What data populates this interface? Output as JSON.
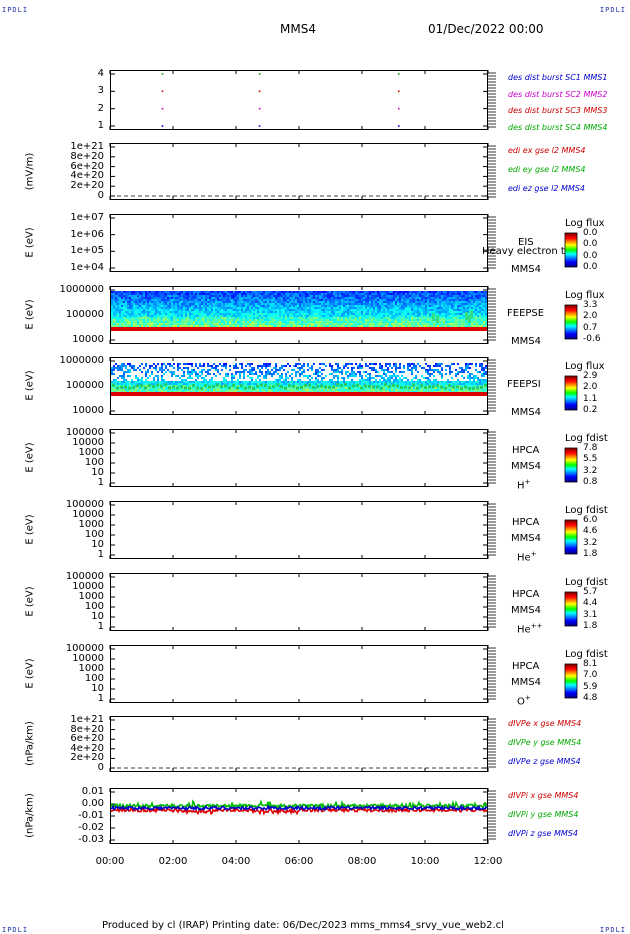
{
  "corner_labels": {
    "tl": "IPDLI",
    "tr": "IPDLI",
    "bl": "IPDLI",
    "br": "IPDLI"
  },
  "header": {
    "mission": "MMS4",
    "date": "01/Dec/2022 00:00"
  },
  "footer": {
    "text": "Produced by cl (IRAP)   Printing date: 06/Dec/2023   mms_mms4_srvy_vue_web2.cl"
  },
  "x_ticks": [
    "00:00",
    "02:00",
    "04:00",
    "06:00",
    "08:00",
    "10:00",
    "12:00"
  ],
  "panels": [
    {
      "id": "burst",
      "ylabel": "",
      "ticks": [
        "4",
        "3",
        "2",
        "1"
      ],
      "legend": [
        {
          "text": "des dist burst SC1 MMS1",
          "color": "#0000cc"
        },
        {
          "text": "des dist burst SC2 MMS2",
          "color": "#cc00cc"
        },
        {
          "text": "des dist burst SC3 MMS3",
          "color": "#cc0000"
        },
        {
          "text": "des dist burst SC4 MMS4",
          "color": "#00aa00"
        }
      ]
    },
    {
      "id": "edi",
      "ylabel": "(mV/m)",
      "ticks": [
        "1e+21",
        "8e+20",
        "6e+20",
        "4e+20",
        "2e+20",
        "0"
      ],
      "legend": [
        {
          "text": "edi ex gse l2 MMS4",
          "color": "#cc0000"
        },
        {
          "text": "edi ey gse l2 MMS4",
          "color": "#00aa00"
        },
        {
          "text": "edi ez gse l2 MMS4",
          "color": "#0000cc"
        }
      ]
    },
    {
      "id": "eis",
      "ylabel": "E (eV)",
      "ticks": [
        "1e+07",
        "1e+06",
        "1e+05",
        "1e+04"
      ],
      "inst": [
        "EIS",
        "MMS4"
      ],
      "overlay": "Heavy electron to",
      "cb_title": "Log flux",
      "cb_vals": [
        "0.0",
        "0.0",
        "0.0",
        "0.0"
      ]
    },
    {
      "id": "feepse",
      "ylabel": "E (eV)",
      "ticks": [
        "1000000",
        "100000",
        "10000"
      ],
      "inst": [
        "FEEPSE",
        "MMS4"
      ],
      "cb_title": "Log flux",
      "cb_vals": [
        "3.3",
        "2.0",
        "0.7",
        "-0.6"
      ]
    },
    {
      "id": "feepsi",
      "ylabel": "E (eV)",
      "ticks": [
        "1000000",
        "100000",
        "10000"
      ],
      "inst": [
        "FEEPSI",
        "MMS4"
      ],
      "cb_title": "Log flux",
      "cb_vals": [
        "2.9",
        "2.0",
        "1.1",
        "0.2"
      ]
    },
    {
      "id": "hpca_h",
      "ylabel": "E (eV)",
      "ticks": [
        "100000",
        "10000",
        "1000",
        "100",
        "10",
        "1"
      ],
      "inst": [
        "HPCA",
        "MMS4"
      ],
      "species": "H",
      "sup": "+",
      "cb_title": "Log fdist",
      "cb_vals": [
        "7.8",
        "5.5",
        "3.2",
        "0.8"
      ]
    },
    {
      "id": "hpca_he",
      "ylabel": "E (eV)",
      "ticks": [
        "100000",
        "10000",
        "1000",
        "100",
        "10",
        "1"
      ],
      "inst": [
        "HPCA",
        "MMS4"
      ],
      "species": "He",
      "sup": "+",
      "cb_title": "Log fdist",
      "cb_vals": [
        "6.0",
        "4.6",
        "3.2",
        "1.8"
      ]
    },
    {
      "id": "hpca_he2",
      "ylabel": "E (eV)",
      "ticks": [
        "100000",
        "10000",
        "1000",
        "100",
        "10",
        "1"
      ],
      "inst": [
        "HPCA",
        "MMS4"
      ],
      "species": "He",
      "sup": "++",
      "cb_title": "Log fdist",
      "cb_vals": [
        "5.7",
        "4.4",
        "3.1",
        "1.8"
      ]
    },
    {
      "id": "hpca_o",
      "ylabel": "E (eV)",
      "ticks": [
        "100000",
        "10000",
        "1000",
        "100",
        "10",
        "1"
      ],
      "inst": [
        "HPCA",
        "MMS4"
      ],
      "species": "O",
      "sup": "+",
      "cb_title": "Log fdist",
      "cb_vals": [
        "8.1",
        "7.0",
        "5.9",
        "4.8"
      ]
    },
    {
      "id": "divpe",
      "ylabel": "(nPa/km)",
      "ticks": [
        "1e+21",
        "8e+20",
        "6e+20",
        "4e+20",
        "2e+20",
        "0"
      ],
      "legend": [
        {
          "text": "dIVPe x gse MMS4",
          "color": "#cc0000"
        },
        {
          "text": "dIVPe y gse MMS4",
          "color": "#00aa00"
        },
        {
          "text": "dIVPe z gse MMS4",
          "color": "#0000cc"
        }
      ]
    },
    {
      "id": "divpi",
      "ylabel": "(nPa/km)",
      "ticks": [
        "0.01",
        "0.00",
        "-0.01",
        "-0.02",
        "-0.03"
      ],
      "legend": [
        {
          "text": "dIVPi x gse MMS4",
          "color": "#cc0000"
        },
        {
          "text": "dIVPi y gse MMS4",
          "color": "#00aa00"
        },
        {
          "text": "dIVPi z gse MMS4",
          "color": "#0000cc"
        }
      ]
    }
  ],
  "chart_data": [
    {
      "type": "scatter",
      "title": "des dist burst",
      "xlim": [
        "00:00",
        "12:00"
      ],
      "ylim": [
        0.5,
        4.5
      ],
      "series": [
        {
          "name": "des dist burst SC1 MMS1",
          "x": [
            "01:40",
            "04:45",
            "09:10"
          ],
          "y": [
            1,
            1,
            1
          ]
        },
        {
          "name": "des dist burst SC2 MMS2",
          "x": [
            "01:40",
            "04:45",
            "09:10"
          ],
          "y": [
            2,
            2,
            2
          ]
        },
        {
          "name": "des dist burst SC3 MMS3",
          "x": [
            "01:40",
            "04:45",
            "09:10"
          ],
          "y": [
            3,
            3,
            3
          ]
        },
        {
          "name": "des dist burst SC4 MMS4",
          "x": [
            "01:40",
            "04:45",
            "09:10"
          ],
          "y": [
            4,
            4,
            4
          ]
        }
      ]
    },
    {
      "type": "line",
      "ylabel": "(mV/m)",
      "series": [
        {
          "name": "edi ex gse l2 MMS4"
        },
        {
          "name": "edi ey gse l2 MMS4"
        },
        {
          "name": "edi ez gse l2 MMS4"
        }
      ],
      "ylim": [
        0,
        1e+21
      ]
    },
    {
      "type": "heatmap",
      "ylabel": "E (eV)",
      "yscale": "log",
      "ylim": [
        10000.0,
        10000000.0
      ],
      "colorbar": "Log flux"
    },
    {
      "type": "heatmap",
      "ylabel": "E (eV)",
      "yscale": "log",
      "ylim": [
        10000.0,
        1000000.0
      ],
      "colorbar": "Log flux",
      "clim": [
        -0.6,
        3.3
      ]
    },
    {
      "type": "heatmap",
      "ylabel": "E (eV)",
      "yscale": "log",
      "ylim": [
        10000.0,
        1000000.0
      ],
      "colorbar": "Log flux",
      "clim": [
        0.2,
        2.9
      ]
    },
    {
      "type": "heatmap",
      "ylabel": "E (eV)",
      "yscale": "log",
      "ylim": [
        1,
        100000.0
      ],
      "colorbar": "Log fdist",
      "clim": [
        0.8,
        7.8
      ]
    },
    {
      "type": "heatmap",
      "ylabel": "E (eV)",
      "yscale": "log",
      "ylim": [
        1,
        100000.0
      ],
      "colorbar": "Log fdist",
      "clim": [
        1.8,
        6.0
      ]
    },
    {
      "type": "heatmap",
      "ylabel": "E (eV)",
      "yscale": "log",
      "ylim": [
        1,
        100000.0
      ],
      "colorbar": "Log fdist",
      "clim": [
        1.8,
        5.7
      ]
    },
    {
      "type": "heatmap",
      "ylabel": "E (eV)",
      "yscale": "log",
      "ylim": [
        1,
        100000.0
      ],
      "colorbar": "Log fdist",
      "clim": [
        4.8,
        8.1
      ]
    },
    {
      "type": "line",
      "ylabel": "(nPa/km)",
      "ylim": [
        0,
        1e+21
      ],
      "series": [
        {
          "name": "dIVPe x gse MMS4"
        },
        {
          "name": "dIVPe y gse MMS4"
        },
        {
          "name": "dIVPe z gse MMS4"
        }
      ]
    },
    {
      "type": "line",
      "ylabel": "(nPa/km)",
      "ylim": [
        -0.03,
        0.015
      ],
      "series": [
        {
          "name": "dIVPi x gse MMS4",
          "approx_mean": -0.002
        },
        {
          "name": "dIVPi y gse MMS4",
          "approx_mean": 0.002
        },
        {
          "name": "dIVPi z gse MMS4",
          "approx_mean": 0.0
        }
      ]
    }
  ]
}
